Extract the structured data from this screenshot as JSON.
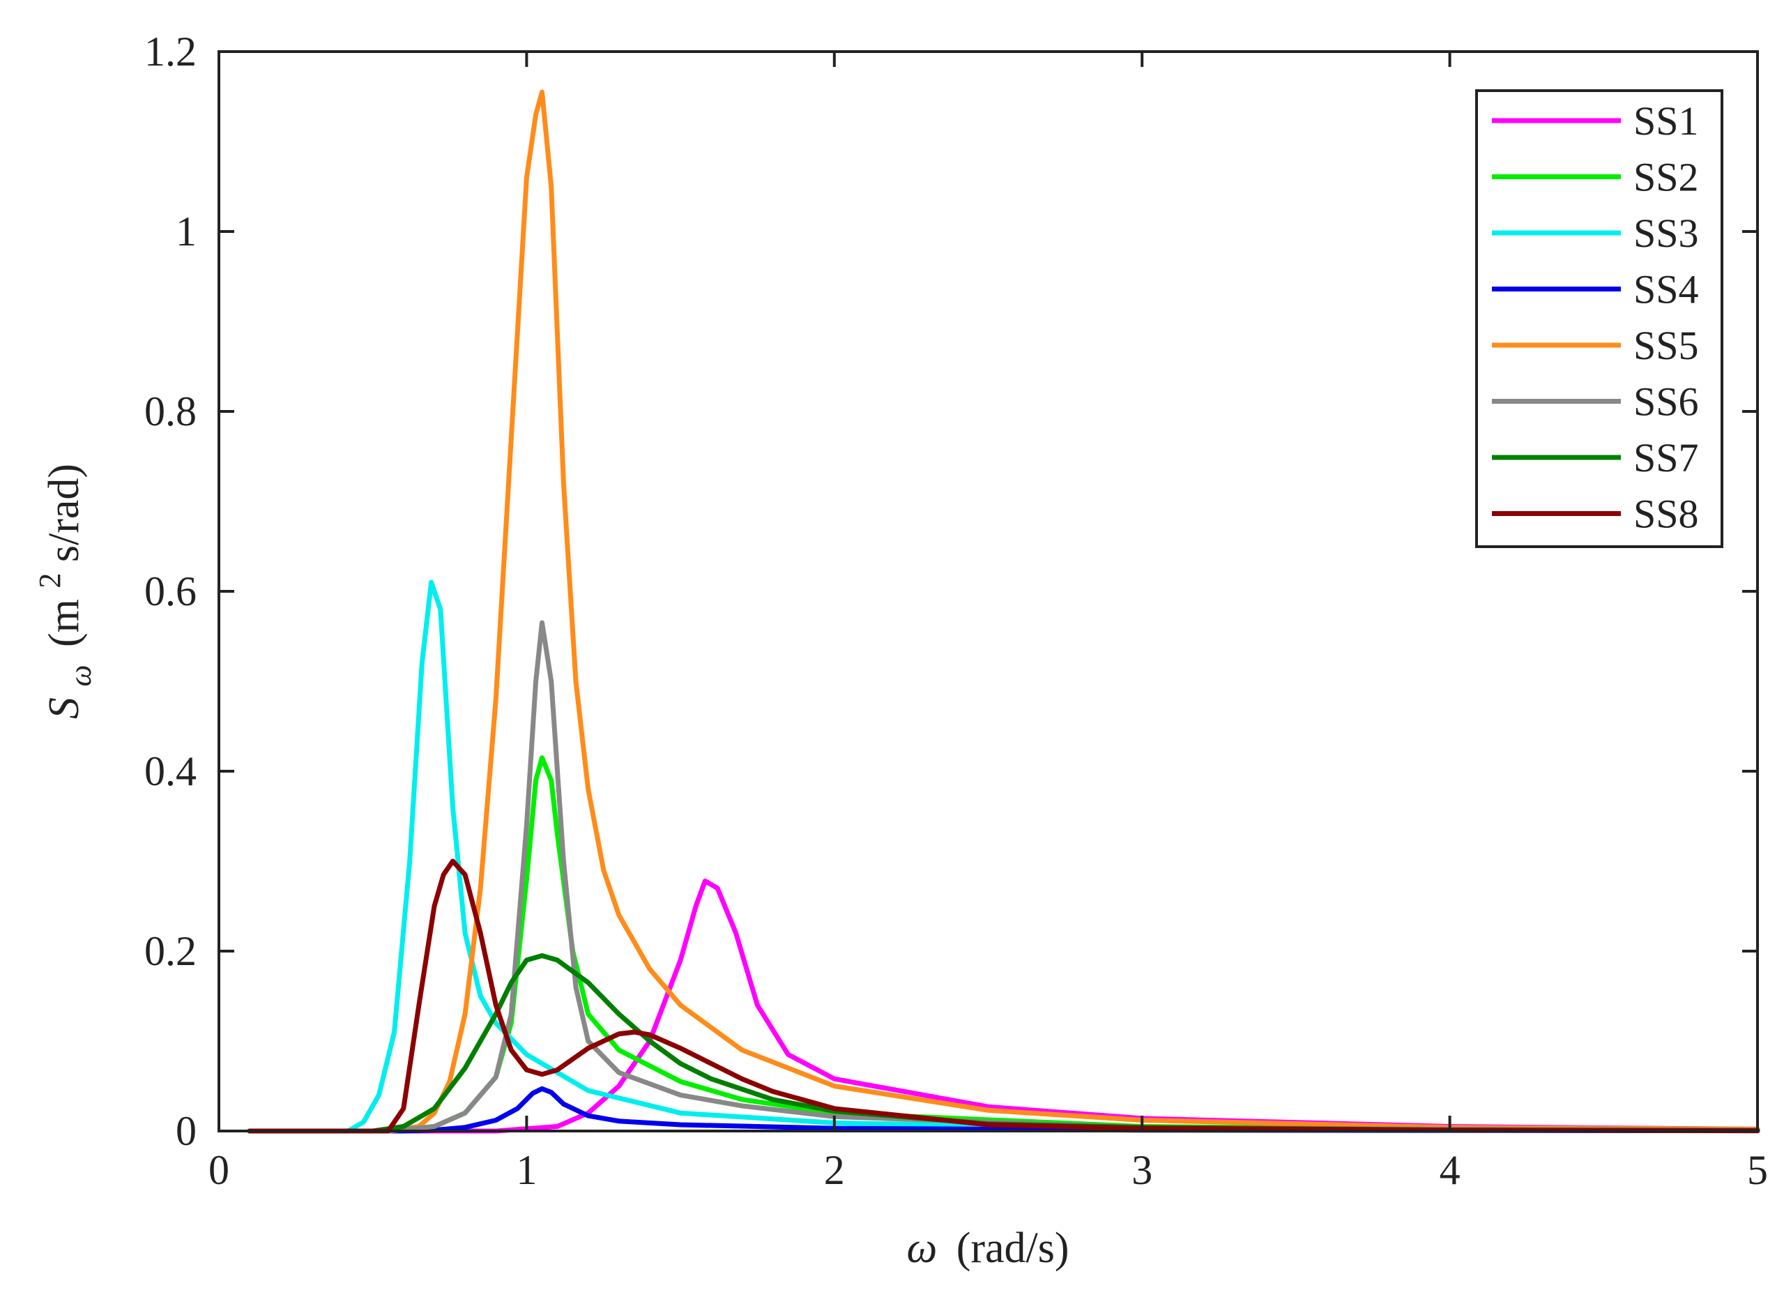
{
  "chart_data": {
    "type": "line",
    "title": "",
    "xlabel": {
      "symbol": "ω",
      "text": "(rad/s)"
    },
    "ylabel": {
      "symbol": "S",
      "subscript": "ω",
      "unit_prefix": "(m",
      "unit_sup": "2",
      "unit_suffix": "s/rad)"
    },
    "xlim": [
      0,
      5
    ],
    "ylim": [
      0,
      1.2
    ],
    "xticks": [
      0,
      1,
      2,
      3,
      4,
      5
    ],
    "xtick_labels": [
      "0",
      "1",
      "2",
      "3",
      "4",
      "5"
    ],
    "yticks": [
      0,
      0.2,
      0.4,
      0.6,
      0.8,
      1.0,
      1.2
    ],
    "ytick_labels": [
      "0",
      "0.2",
      "0.4",
      "0.6",
      "0.8",
      "1",
      "1.2"
    ],
    "grid": false,
    "legend_position": "top-right",
    "series": [
      {
        "name": "SS1",
        "color": "#ff00ff",
        "x": [
          0.1,
          0.9,
          1.1,
          1.2,
          1.3,
          1.4,
          1.5,
          1.55,
          1.58,
          1.62,
          1.68,
          1.75,
          1.85,
          2.0,
          2.5,
          3.0,
          4.0,
          5.0
        ],
        "y": [
          0,
          0,
          0.005,
          0.02,
          0.05,
          0.1,
          0.19,
          0.25,
          0.278,
          0.27,
          0.22,
          0.14,
          0.085,
          0.058,
          0.027,
          0.014,
          0.005,
          0.002
        ]
      },
      {
        "name": "SS2",
        "color": "#00ee00",
        "x": [
          0.1,
          0.55,
          0.7,
          0.8,
          0.9,
          0.95,
          1.0,
          1.03,
          1.05,
          1.08,
          1.1,
          1.15,
          1.2,
          1.3,
          1.5,
          1.7,
          2.0,
          3.0,
          4.0,
          5.0
        ],
        "y": [
          0,
          0,
          0.005,
          0.02,
          0.06,
          0.12,
          0.28,
          0.39,
          0.415,
          0.39,
          0.33,
          0.2,
          0.13,
          0.09,
          0.055,
          0.035,
          0.02,
          0.005,
          0.002,
          0.001
        ]
      },
      {
        "name": "SS3",
        "color": "#00eeee",
        "x": [
          0.1,
          0.42,
          0.47,
          0.52,
          0.57,
          0.62,
          0.66,
          0.69,
          0.72,
          0.76,
          0.8,
          0.85,
          0.9,
          1.0,
          1.2,
          1.5,
          2.0,
          3.0,
          4.0,
          5.0
        ],
        "y": [
          0,
          0,
          0.01,
          0.04,
          0.11,
          0.3,
          0.52,
          0.61,
          0.58,
          0.36,
          0.22,
          0.15,
          0.12,
          0.085,
          0.045,
          0.02,
          0.009,
          0.003,
          0.001,
          0.0005
        ]
      },
      {
        "name": "SS4",
        "color": "#0000ee",
        "x": [
          0.1,
          0.6,
          0.7,
          0.8,
          0.9,
          0.97,
          1.02,
          1.05,
          1.08,
          1.12,
          1.2,
          1.3,
          1.5,
          2.0,
          3.0,
          5.0
        ],
        "y": [
          0,
          0,
          0.001,
          0.004,
          0.012,
          0.025,
          0.042,
          0.047,
          0.043,
          0.03,
          0.017,
          0.011,
          0.007,
          0.003,
          0.001,
          0.0003
        ]
      },
      {
        "name": "SS5",
        "color": "#ff8c1a",
        "x": [
          0.1,
          0.55,
          0.65,
          0.7,
          0.75,
          0.8,
          0.85,
          0.9,
          0.95,
          1.0,
          1.03,
          1.05,
          1.08,
          1.12,
          1.16,
          1.2,
          1.25,
          1.3,
          1.4,
          1.5,
          1.7,
          2.0,
          2.5,
          3.0,
          4.0,
          5.0
        ],
        "y": [
          0,
          0,
          0.005,
          0.02,
          0.055,
          0.13,
          0.27,
          0.48,
          0.77,
          1.06,
          1.13,
          1.155,
          1.05,
          0.72,
          0.5,
          0.38,
          0.29,
          0.24,
          0.18,
          0.14,
          0.09,
          0.05,
          0.023,
          0.012,
          0.004,
          0.002
        ]
      },
      {
        "name": "SS6",
        "color": "#888888",
        "x": [
          0.1,
          0.55,
          0.7,
          0.8,
          0.9,
          0.95,
          1.0,
          1.03,
          1.05,
          1.08,
          1.12,
          1.16,
          1.2,
          1.3,
          1.5,
          1.7,
          2.0,
          3.0,
          4.0,
          5.0
        ],
        "y": [
          0,
          0,
          0.005,
          0.02,
          0.06,
          0.13,
          0.34,
          0.5,
          0.565,
          0.5,
          0.3,
          0.16,
          0.1,
          0.065,
          0.04,
          0.028,
          0.016,
          0.004,
          0.002,
          0.001
        ]
      },
      {
        "name": "SS7",
        "color": "#007f00",
        "x": [
          0.1,
          0.5,
          0.6,
          0.7,
          0.8,
          0.9,
          0.95,
          1.0,
          1.05,
          1.1,
          1.2,
          1.3,
          1.4,
          1.5,
          1.6,
          1.8,
          2.0,
          2.5,
          3.0,
          4.0,
          5.0
        ],
        "y": [
          0,
          0,
          0.005,
          0.025,
          0.07,
          0.13,
          0.165,
          0.19,
          0.195,
          0.19,
          0.165,
          0.13,
          0.1,
          0.075,
          0.058,
          0.035,
          0.022,
          0.008,
          0.004,
          0.001,
          0.0005
        ]
      },
      {
        "name": "SS8",
        "color": "#8b0000",
        "x": [
          0.1,
          0.55,
          0.6,
          0.65,
          0.7,
          0.73,
          0.76,
          0.8,
          0.85,
          0.9,
          0.95,
          1.0,
          1.05,
          1.1,
          1.2,
          1.3,
          1.35,
          1.4,
          1.5,
          1.6,
          1.7,
          1.8,
          2.0,
          2.5,
          3.0,
          4.0,
          5.0
        ],
        "y": [
          0,
          0,
          0.025,
          0.14,
          0.25,
          0.285,
          0.3,
          0.285,
          0.22,
          0.14,
          0.09,
          0.068,
          0.063,
          0.068,
          0.092,
          0.108,
          0.11,
          0.107,
          0.092,
          0.075,
          0.058,
          0.044,
          0.025,
          0.007,
          0.003,
          0.001,
          0.0003
        ]
      }
    ]
  }
}
